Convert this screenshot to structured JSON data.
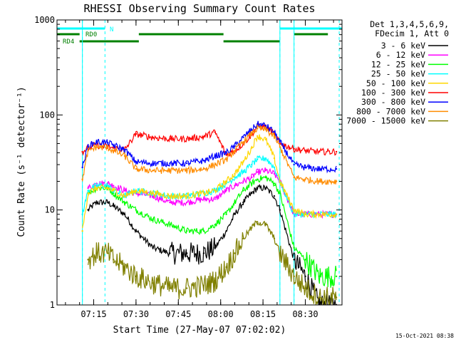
{
  "chart_data": {
    "type": "line",
    "title": "RHESSI Observing Summary Count Rates",
    "xlabel": "Start Time (27-May-07 07:02:02)",
    "ylabel": "Count Rate (s⁻¹ detector⁻¹)",
    "x_unit": "UT time",
    "xlim": [
      "07:02",
      "08:43"
    ],
    "xticks": [
      "07:15",
      "07:30",
      "07:45",
      "08:00",
      "08:15",
      "08:30"
    ],
    "ylim": [
      1,
      1000
    ],
    "yscale": "log",
    "yticks": [
      1,
      10,
      100,
      1000
    ],
    "legend_header": [
      "Det 1,3,4,5,6,9,",
      "FDecim 1, Att 0"
    ],
    "legend_position": "right",
    "stamp": "15-Oct-2021 08:38",
    "data_gaps": [
      [
        "07:02",
        "07:11"
      ],
      [
        "08:21",
        "08:26"
      ]
    ],
    "night_markers": [
      "07:11",
      "07:19",
      "08:21",
      "08:26",
      "08:42"
    ],
    "flags": [
      {
        "name": "N",
        "color": "#00ffff",
        "intervals": [
          [
            "07:02",
            "07:19"
          ],
          [
            "08:21",
            "08:43"
          ]
        ]
      },
      {
        "name": "RD0",
        "color": "#008000",
        "intervals": [
          [
            "07:02",
            "07:10"
          ],
          [
            "07:31",
            "08:01"
          ],
          [
            "08:26",
            "08:38"
          ]
        ]
      },
      {
        "name": "RD4",
        "color": "#008000",
        "intervals": [
          [
            "07:10",
            "07:31"
          ],
          [
            "08:01",
            "08:21"
          ]
        ]
      }
    ],
    "x": [
      "07:11",
      "07:13",
      "07:16",
      "07:20",
      "07:22",
      "07:26",
      "07:30",
      "07:36",
      "07:42",
      "07:48",
      "07:54",
      "07:58",
      "08:02",
      "08:05",
      "08:08",
      "08:11",
      "08:13",
      "08:16",
      "08:19",
      "08:21",
      "08:26",
      "08:30",
      "08:35",
      "08:41"
    ],
    "series": [
      {
        "name": "3 - 6 keV",
        "color": "#000000",
        "values": [
          null,
          10,
          12,
          12,
          11,
          9,
          6,
          4,
          3.5,
          3.5,
          3.5,
          4,
          6,
          9,
          12,
          15,
          17,
          17,
          14,
          10,
          3,
          2,
          1,
          1
        ]
      },
      {
        "name": "6 - 12 keV",
        "color": "#ff00ff",
        "values": [
          null,
          17,
          19,
          19,
          18,
          16,
          15,
          14,
          12,
          12,
          13,
          13,
          16,
          18,
          20,
          22,
          25,
          26,
          24,
          20,
          9,
          9,
          9,
          9
        ]
      },
      {
        "name": "12 - 25 keV",
        "color": "#00ff00",
        "values": [
          null,
          15,
          17,
          17,
          15,
          12,
          10,
          8,
          7,
          6,
          6,
          7,
          9,
          12,
          16,
          19,
          21,
          22,
          19,
          15,
          4,
          3,
          2,
          2
        ]
      },
      {
        "name": "25 - 50 keV",
        "color": "#00ffff",
        "values": [
          9,
          16,
          18,
          18,
          16,
          14,
          16,
          15,
          14,
          14,
          15,
          16,
          19,
          22,
          25,
          30,
          34,
          35,
          28,
          20,
          9,
          9,
          9,
          9
        ]
      },
      {
        "name": "50 - 100 keV",
        "color": "#ffd700",
        "values": [
          6,
          15,
          17,
          17,
          16,
          14,
          16,
          15,
          14,
          14,
          15,
          16,
          20,
          24,
          32,
          45,
          60,
          55,
          35,
          20,
          10,
          9,
          9,
          9
        ]
      },
      {
        "name": "100 - 300 keV",
        "color": "#ff0000",
        "values": [
          41,
          45,
          48,
          46,
          45,
          43,
          63,
          58,
          56,
          56,
          59,
          66,
          38,
          42,
          50,
          62,
          77,
          75,
          63,
          50,
          44,
          42,
          41,
          41
        ]
      },
      {
        "name": "300 - 800 keV",
        "color": "#0000ff",
        "values": [
          28,
          47,
          52,
          51,
          48,
          43,
          32,
          31,
          31,
          31,
          33,
          37,
          40,
          47,
          58,
          70,
          80,
          77,
          66,
          52,
          30,
          28,
          27,
          27
        ]
      },
      {
        "name": "800 - 7000 keV",
        "color": "#ff8c00",
        "values": [
          21,
          42,
          46,
          45,
          42,
          37,
          27,
          26,
          26,
          26,
          27,
          30,
          34,
          42,
          52,
          64,
          72,
          70,
          59,
          46,
          22,
          21,
          20,
          20
        ]
      },
      {
        "name": "7000 - 15000 keV",
        "color": "#808000",
        "values": [
          null,
          3,
          3.5,
          3.5,
          3,
          2.5,
          2,
          1.7,
          1.5,
          1.5,
          1.6,
          1.8,
          2.5,
          3.5,
          5,
          6.5,
          7.5,
          7,
          5,
          3.5,
          2,
          1.5,
          1.2,
          1.2
        ]
      }
    ]
  }
}
